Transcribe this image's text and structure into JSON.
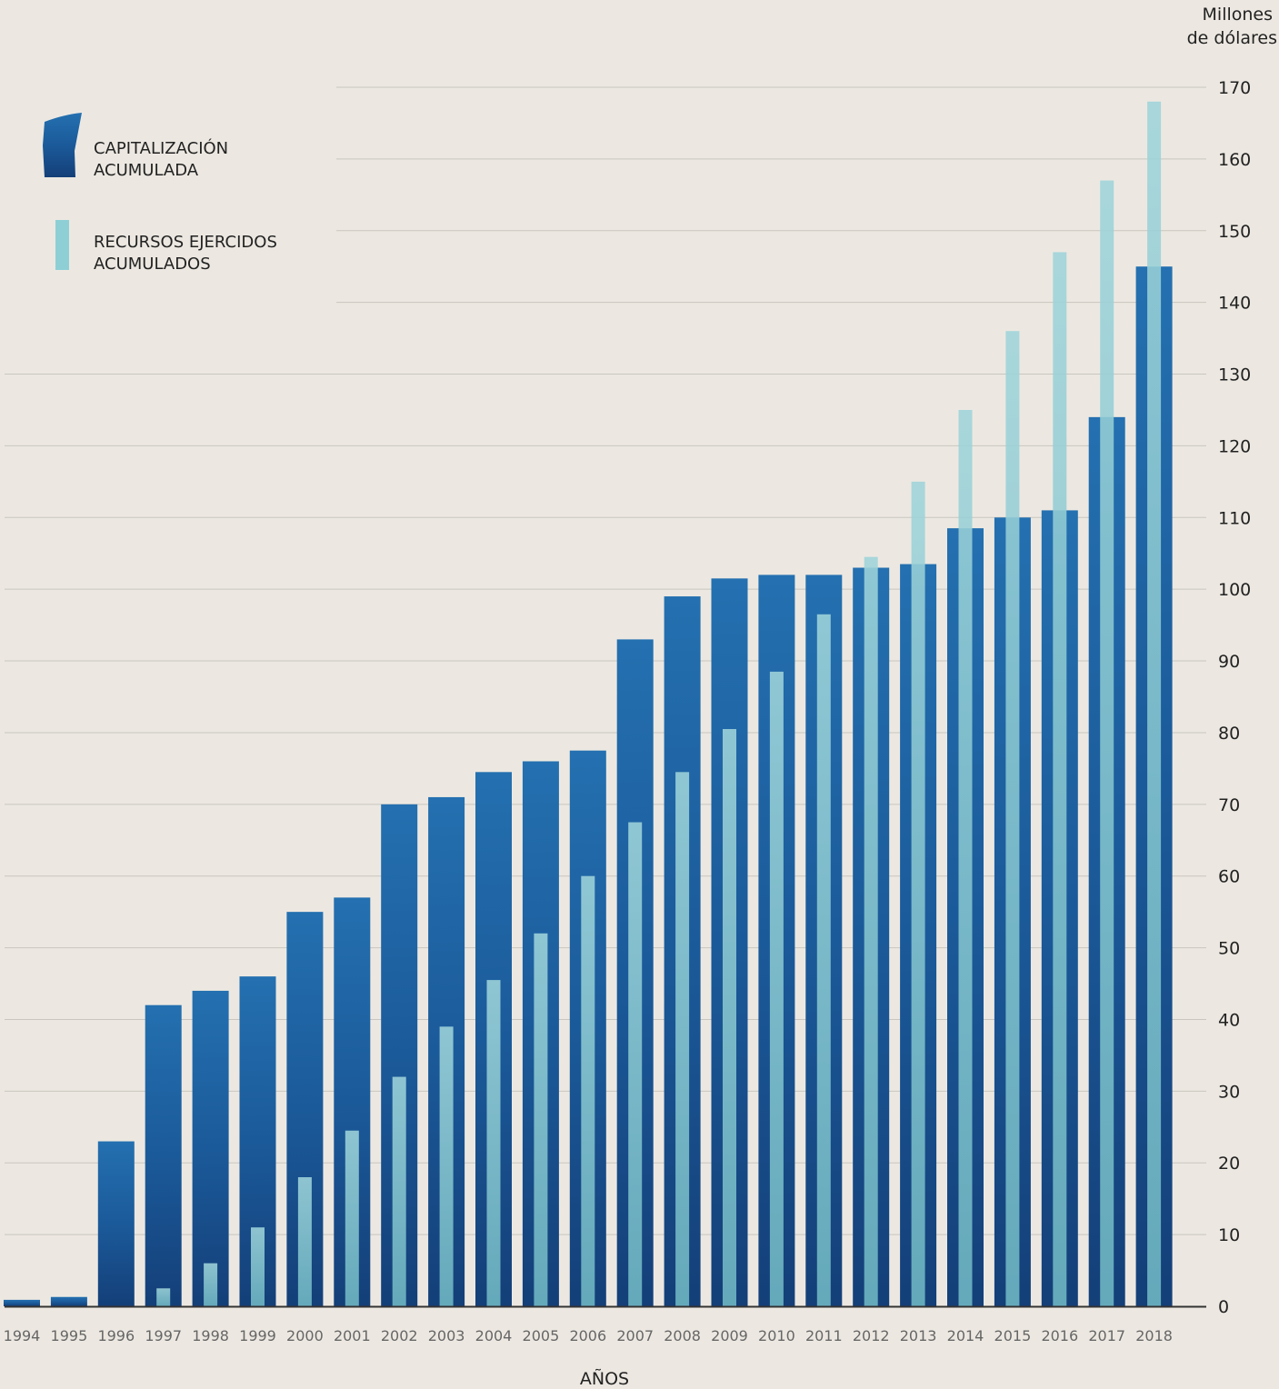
{
  "chart_data": {
    "type": "bar",
    "categories": [
      "1994",
      "1995",
      "1996",
      "1997",
      "1998",
      "1999",
      "2000",
      "2001",
      "2002",
      "2003",
      "2004",
      "2005",
      "2006",
      "2007",
      "2008",
      "2009",
      "2010",
      "2011",
      "2012",
      "2013",
      "2014",
      "2015",
      "2016",
      "2017",
      "2018"
    ],
    "series": [
      {
        "name": "CAPITALIZACIÓN ACUMULADA",
        "label_lines": [
          "CAPITALIZACIÓN",
          "ACUMULADA"
        ],
        "color": "#1d5a9a",
        "values": [
          0.9,
          1.3,
          23,
          42,
          44,
          46,
          55,
          57,
          70,
          71,
          74.5,
          76,
          77.5,
          93,
          99,
          101.5,
          102,
          102,
          103,
          103.5,
          108.5,
          110,
          111,
          124,
          145
        ]
      },
      {
        "name": "RECURSOS EJERCIDOS ACUMULADOS",
        "label_lines": [
          "RECURSOS EJERCIDOS",
          "ACUMULADOS"
        ],
        "color": "#8ecfd6",
        "values": [
          0,
          0,
          0,
          2.5,
          6,
          11,
          18,
          24.5,
          32,
          39,
          45.5,
          52,
          60,
          67.5,
          74.5,
          80.5,
          88.5,
          96.5,
          104.5,
          115,
          125,
          136,
          147,
          157,
          168
        ]
      }
    ],
    "yticks": [
      "0",
      "10",
      "20",
      "30",
      "40",
      "50",
      "60",
      "70",
      "80",
      "90",
      "100",
      "110",
      "120",
      "130",
      "140",
      "150",
      "160",
      "170"
    ],
    "ylim": [
      0,
      170
    ],
    "ylabel_lines": [
      "Millones",
      "de dólares"
    ],
    "xlabel": "AÑOS",
    "grid": true,
    "legend_position": "top-left",
    "colors": {
      "background": "#ece8e1",
      "grid": "#c9c6c0",
      "axis": "#333333"
    }
  }
}
